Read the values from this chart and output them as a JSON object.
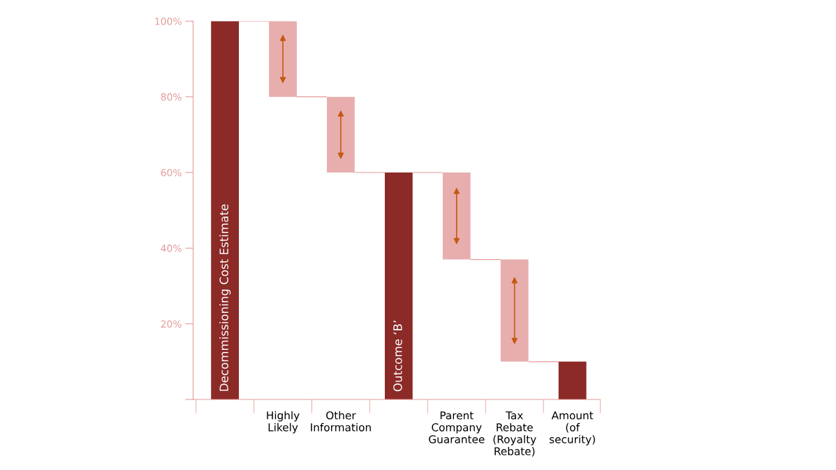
{
  "chart_data": {
    "type": "bar",
    "categories": [
      null,
      "Highly\nLikely",
      "Other\nInformation",
      null,
      "Parent\nCompany\nGuarantee",
      "Tax\nRebate\n(Royalty\nRebate)",
      "Amount\n(of\nsecurity)"
    ],
    "values": [
      100,
      20,
      20,
      60,
      23,
      27,
      10
    ],
    "base": [
      0,
      80,
      60,
      0,
      37,
      10,
      0
    ],
    "colors": [
      "#8b2a27",
      "#e8aeae",
      "#e8aeae",
      "#8b2a27",
      "#e8aeae",
      "#e8aeae",
      "#8b2a27"
    ],
    "value_labels": [
      "Decommissioning Cost Estimate",
      null,
      null,
      "Outcome ‘B’",
      null,
      null,
      null
    ],
    "ylim": [
      0,
      100
    ],
    "yticks": [
      {
        "value": 0,
        "label": null
      },
      {
        "value": 20,
        "label": "20%"
      },
      {
        "value": 40,
        "label": "40%"
      },
      {
        "value": 60,
        "label": "60%"
      },
      {
        "value": 80,
        "label": "80%"
      },
      {
        "value": 100,
        "label": "100%"
      }
    ],
    "grid": false,
    "legend": false
  }
}
